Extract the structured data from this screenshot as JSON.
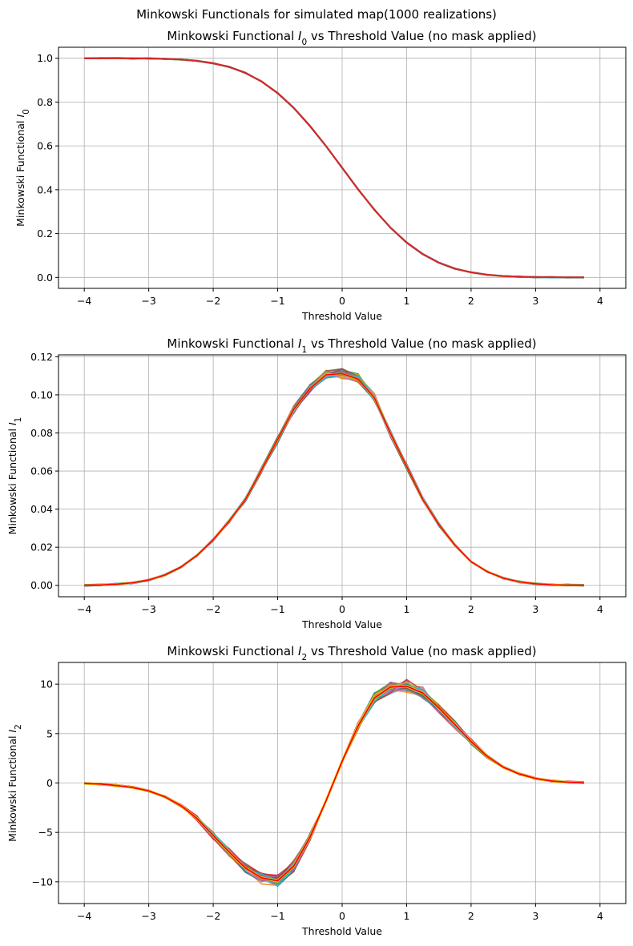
{
  "suptitle": "Minkowski Functionals for simulated map(1000 realizations)",
  "chart_data": [
    {
      "type": "line",
      "title_prefix": "Minkowski Functional ",
      "title_symbol": "I",
      "title_subscript": "0",
      "title_suffix": " vs Threshold Value (no mask applied)",
      "xlabel": "Threshold Value",
      "ylabel_prefix": "Minkowski Functional ",
      "ylabel_symbol": "I",
      "ylabel_subscript": "0",
      "xlim": [
        -4.4,
        4.4
      ],
      "ylim": [
        -0.05,
        1.05
      ],
      "xticks": [
        -4,
        -3,
        -2,
        -1,
        0,
        1,
        2,
        3,
        4
      ],
      "yticks": [
        0.0,
        0.2,
        0.4,
        0.6,
        0.8,
        1.0
      ],
      "ytick_labels": [
        "0.0",
        "0.2",
        "0.4",
        "0.6",
        "0.8",
        "1.0"
      ],
      "grid": true,
      "realizations_shown": 1000,
      "spread": 0.002,
      "x": [
        -4.0,
        -3.75,
        -3.5,
        -3.25,
        -3.0,
        -2.75,
        -2.5,
        -2.25,
        -2.0,
        -1.75,
        -1.5,
        -1.25,
        -1.0,
        -0.75,
        -0.5,
        -0.25,
        0.0,
        0.25,
        0.5,
        0.75,
        1.0,
        1.25,
        1.5,
        1.75,
        2.0,
        2.25,
        2.5,
        2.75,
        3.0,
        3.25,
        3.5,
        3.75
      ],
      "y": [
        1.0,
        1.0,
        1.0,
        0.999,
        0.999,
        0.997,
        0.994,
        0.988,
        0.977,
        0.96,
        0.933,
        0.894,
        0.841,
        0.773,
        0.691,
        0.599,
        0.5,
        0.401,
        0.309,
        0.227,
        0.159,
        0.106,
        0.067,
        0.04,
        0.023,
        0.012,
        0.006,
        0.003,
        0.001,
        0.001,
        0.0,
        0.0
      ],
      "mean_color": "#d62728"
    },
    {
      "type": "line",
      "title_prefix": "Minkowski Functional ",
      "title_symbol": "I",
      "title_subscript": "1",
      "title_suffix": " vs Threshold Value (no mask applied)",
      "xlabel": "Threshold Value",
      "ylabel_prefix": "Minkowski Functional ",
      "ylabel_symbol": "I",
      "ylabel_subscript": "1",
      "xlim": [
        -4.4,
        4.4
      ],
      "ylim": [
        -0.006,
        0.121
      ],
      "xticks": [
        -4,
        -3,
        -2,
        -1,
        0,
        1,
        2,
        3,
        4
      ],
      "yticks": [
        0.0,
        0.02,
        0.04,
        0.06,
        0.08,
        0.1,
        0.12
      ],
      "ytick_labels": [
        "0.00",
        "0.02",
        "0.04",
        "0.06",
        "0.08",
        "0.10",
        "0.12"
      ],
      "grid": true,
      "realizations_shown": 1000,
      "spread": 0.0025,
      "x": [
        -4.0,
        -3.75,
        -3.5,
        -3.25,
        -3.0,
        -2.75,
        -2.5,
        -2.25,
        -2.0,
        -1.75,
        -1.5,
        -1.25,
        -1.0,
        -0.75,
        -0.5,
        -0.25,
        0.0,
        0.25,
        0.5,
        0.75,
        1.0,
        1.25,
        1.5,
        1.75,
        2.0,
        2.25,
        2.5,
        2.75,
        3.0,
        3.25,
        3.5,
        3.75
      ],
      "y": [
        0.0,
        0.0002,
        0.0006,
        0.0013,
        0.0028,
        0.0054,
        0.0096,
        0.0157,
        0.0239,
        0.0338,
        0.0451,
        0.0606,
        0.0765,
        0.0925,
        0.1033,
        0.1105,
        0.1111,
        0.1083,
        0.0985,
        0.0798,
        0.0624,
        0.0451,
        0.0319,
        0.0211,
        0.0124,
        0.0072,
        0.0038,
        0.0018,
        0.0008,
        0.0003,
        0.0001,
        0.0
      ]
    },
    {
      "type": "line",
      "title_prefix": "Minkowski Functional ",
      "title_symbol": "I",
      "title_subscript": "2",
      "title_suffix": " vs Threshold Value (no mask applied)",
      "xlabel": "Threshold Value",
      "ylabel_prefix": "Minkowski Functional ",
      "ylabel_symbol": "I",
      "ylabel_subscript": "2",
      "xlim": [
        -4.4,
        4.4
      ],
      "ylim": [
        -12.2,
        12.2
      ],
      "xticks": [
        -4,
        -3,
        -2,
        -1,
        0,
        1,
        2,
        3,
        4
      ],
      "yticks": [
        -10,
        -5,
        0,
        5,
        10
      ],
      "ytick_labels": [
        "−10",
        "−5",
        "0",
        "5",
        "10"
      ],
      "grid": true,
      "realizations_shown": 1000,
      "spread": 0.6,
      "x": [
        -4.0,
        -3.75,
        -3.5,
        -3.25,
        -3.0,
        -2.75,
        -2.5,
        -2.25,
        -2.0,
        -1.75,
        -1.5,
        -1.25,
        -1.0,
        -0.75,
        -0.5,
        -0.25,
        0.0,
        0.25,
        0.5,
        0.75,
        1.0,
        1.25,
        1.5,
        1.75,
        2.0,
        2.25,
        2.5,
        2.75,
        3.0,
        3.25,
        3.5,
        3.75
      ],
      "y": [
        -0.05,
        -0.1,
        -0.25,
        -0.45,
        -0.8,
        -1.4,
        -2.3,
        -3.6,
        -5.3,
        -7.0,
        -8.6,
        -9.6,
        -9.9,
        -8.4,
        -5.5,
        -1.8,
        2.2,
        5.8,
        8.6,
        9.7,
        9.8,
        9.1,
        7.6,
        5.9,
        4.2,
        2.7,
        1.6,
        0.9,
        0.45,
        0.2,
        0.08,
        0.02
      ],
      "mean_color": "#ff0000"
    }
  ],
  "palette": [
    "#1f77b4",
    "#ff7f0e",
    "#2ca02c",
    "#d62728",
    "#9467bd",
    "#8c564b",
    "#e377c2",
    "#7f7f7f",
    "#bcbd22",
    "#17becf"
  ]
}
